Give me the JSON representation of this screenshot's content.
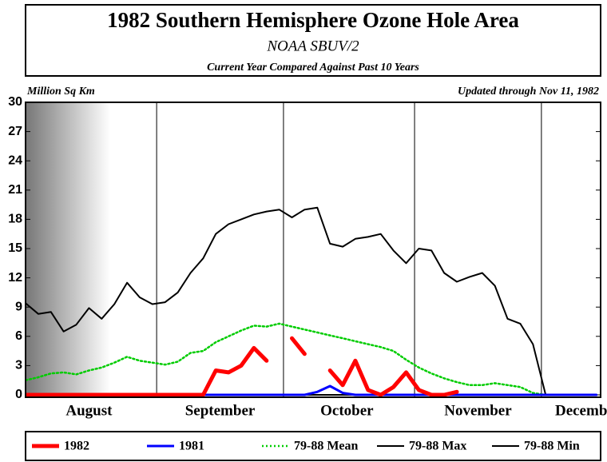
{
  "chart_data": {
    "type": "line",
    "title": "1982 Southern Hemisphere Ozone Hole Area",
    "subtitle": "NOAA SBUV/2",
    "caption": "Current Year Compared Against Past 10 Years",
    "y_label": "Million Sq Km",
    "note": "Updated through Nov 11, 1982",
    "x": [
      0,
      3,
      6,
      9,
      12,
      15,
      18,
      21,
      24,
      27,
      30,
      33,
      36,
      39,
      42,
      45,
      48,
      51,
      54,
      57,
      60,
      63,
      66,
      69,
      72,
      75,
      78,
      81,
      84,
      87,
      90,
      93,
      96,
      99,
      102,
      105,
      108,
      111,
      114,
      117,
      120,
      123,
      126,
      129,
      132,
      135
    ],
    "xlim": [
      0,
      136
    ],
    "xticks": [
      {
        "value": 15,
        "label": "August"
      },
      {
        "value": 46,
        "label": "September"
      },
      {
        "value": 76,
        "label": "October"
      },
      {
        "value": 107,
        "label": "November"
      },
      {
        "value": 133,
        "label": "December"
      }
    ],
    "xgrid": [
      31,
      61,
      92,
      122
    ],
    "ylim": [
      0,
      30
    ],
    "yticks": [
      0,
      3,
      6,
      9,
      12,
      15,
      18,
      21,
      24,
      27,
      30
    ],
    "series": [
      {
        "name": "79-88 Min",
        "color": "#000000",
        "style": "solid",
        "width": 2,
        "values": [
          0,
          0,
          0,
          0,
          0,
          0,
          0,
          0,
          0,
          0,
          0,
          0,
          0,
          0,
          0,
          0,
          0,
          0,
          0,
          0,
          0,
          0,
          0,
          0,
          0,
          0,
          0,
          0,
          0,
          0,
          0,
          0,
          0,
          0,
          0,
          0,
          0,
          0,
          0,
          0,
          0,
          0,
          null,
          null,
          null,
          null
        ]
      },
      {
        "name": "79-88 Max",
        "color": "#000000",
        "style": "solid",
        "width": 2,
        "values": [
          9.4,
          8.3,
          8.5,
          6.5,
          7.2,
          8.9,
          7.8,
          9.3,
          11.5,
          10,
          9.3,
          9.5,
          10.5,
          12.5,
          14,
          16.5,
          17.5,
          18,
          18.5,
          18.8,
          19,
          18.2,
          19,
          19.2,
          15.5,
          15.2,
          16,
          16.2,
          16.5,
          14.8,
          13.5,
          15,
          14.8,
          12.5,
          11.6,
          12.1,
          12.5,
          11.2,
          7.8,
          7.3,
          5.2,
          0,
          null,
          null,
          null,
          null
        ]
      },
      {
        "name": "79-88 Mean",
        "color": "#00cc00",
        "style": "dotted",
        "width": 2.5,
        "values": [
          1.5,
          1.8,
          2.2,
          2.3,
          2.1,
          2.5,
          2.8,
          3.3,
          3.9,
          3.5,
          3.3,
          3.1,
          3.4,
          4.3,
          4.5,
          5.4,
          6,
          6.6,
          7.1,
          7,
          7.3,
          7,
          6.7,
          6.4,
          6.1,
          5.8,
          5.5,
          5.2,
          4.9,
          4.5,
          3.6,
          2.8,
          2.2,
          1.7,
          1.3,
          1,
          1,
          1.2,
          1,
          0.8,
          0.2,
          0,
          null,
          null,
          null,
          null
        ]
      },
      {
        "name": "1981",
        "color": "#0000ff",
        "style": "solid",
        "width": 3,
        "values": [
          0,
          0,
          0,
          0,
          0,
          0,
          0,
          0,
          0,
          0,
          0,
          0,
          0,
          0,
          0,
          0,
          0,
          0,
          0,
          0,
          0,
          0,
          0,
          0.3,
          0.9,
          0.2,
          0,
          0,
          0,
          0,
          0,
          0,
          0,
          0,
          0,
          0,
          0,
          0,
          0,
          0,
          0,
          0,
          0,
          0,
          0,
          0
        ]
      },
      {
        "name": "1982",
        "color": "#ff0000",
        "style": "solid",
        "width": 5,
        "values": [
          0,
          0,
          0,
          0,
          0,
          0,
          0,
          0,
          0,
          0,
          0,
          0,
          0,
          0,
          0,
          2.5,
          2.3,
          3,
          4.8,
          3.5,
          null,
          5.8,
          4.2,
          null,
          2.5,
          1,
          3.5,
          0.5,
          0,
          0.8,
          2.3,
          0.5,
          0,
          0,
          0.3,
          null,
          null,
          null,
          null,
          null,
          null,
          null,
          null,
          null,
          null,
          null
        ]
      }
    ],
    "legend_order": [
      4,
      3,
      2,
      1,
      0
    ]
  }
}
